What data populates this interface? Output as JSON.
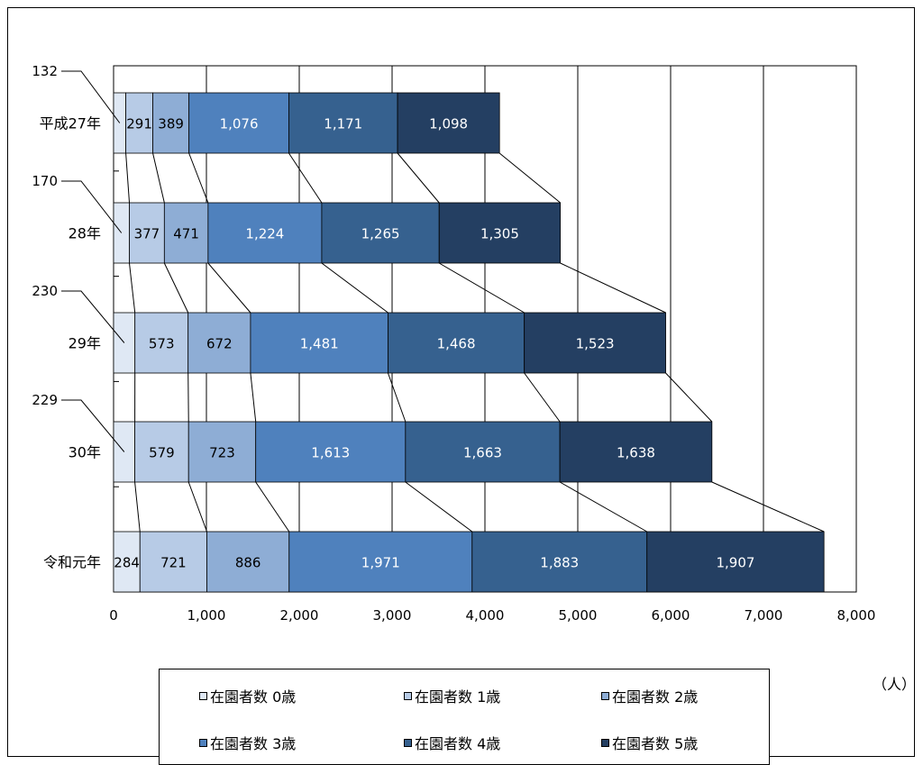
{
  "chart_data": {
    "type": "bar",
    "orientation": "horizontal",
    "stacked": true,
    "categories": [
      "平成27年",
      "28年",
      "29年",
      "30年",
      "令和元年"
    ],
    "series": [
      {
        "name": "在園者数 0歳",
        "values": [
          132,
          170,
          230,
          229,
          284
        ],
        "color": "#dfe8f4"
      },
      {
        "name": "在園者数 1歳",
        "values": [
          291,
          377,
          573,
          579,
          721
        ],
        "color": "#b7cbe6"
      },
      {
        "name": "在園者数 2歳",
        "values": [
          389,
          471,
          672,
          723,
          886
        ],
        "color": "#8eadd5"
      },
      {
        "name": "在園者数 3歳",
        "values": [
          1076,
          1224,
          1481,
          1613,
          1971
        ],
        "color": "#4f81bd"
      },
      {
        "name": "在園者数 4歳",
        "values": [
          1171,
          1265,
          1468,
          1663,
          1883
        ],
        "color": "#36618f"
      },
      {
        "name": "在園者数 5歳",
        "values": [
          1098,
          1305,
          1523,
          1638,
          1907
        ],
        "color": "#243f62"
      }
    ],
    "value_labels": [
      [
        "132",
        "291",
        "389",
        "1,076",
        "1,171",
        "1,098"
      ],
      [
        "170",
        "377",
        "471",
        "1,224",
        "1,265",
        "1,305"
      ],
      [
        "230",
        "573",
        "672",
        "1,481",
        "1,468",
        "1,523"
      ],
      [
        "229",
        "579",
        "723",
        "1,613",
        "1,663",
        "1,638"
      ],
      [
        "284",
        "721",
        "886",
        "1,971",
        "1,883",
        "1,907"
      ]
    ],
    "x_ticks": [
      "0",
      "1,000",
      "2,000",
      "3,000",
      "4,000",
      "5,000",
      "6,000",
      "7,000",
      "8,000"
    ],
    "xlim": [
      0,
      8000
    ],
    "unit_label": "（人）",
    "grid": true,
    "legend_position": "bottom"
  }
}
